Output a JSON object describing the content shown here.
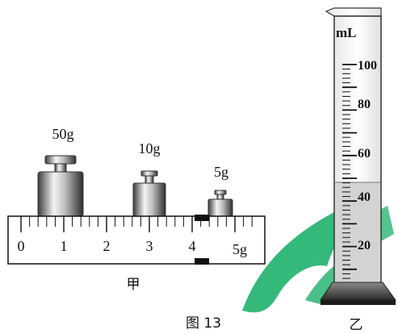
{
  "weights": [
    {
      "label": "50g"
    },
    {
      "label": "10g"
    },
    {
      "label": "5g"
    }
  ],
  "ruler": {
    "numbers": [
      "0",
      "1",
      "2",
      "3",
      "4"
    ],
    "end_label": "5g",
    "caption": "甲"
  },
  "cylinder": {
    "unit": "mL",
    "labels": [
      "100",
      "80",
      "60",
      "40",
      "20"
    ],
    "caption": "乙"
  },
  "figure_caption": "图 13",
  "colors": {
    "watermark_green": "#2bb673",
    "liquid": "#d3d3d3",
    "metal_light": "#f2f2f2",
    "metal_dark": "#5a5a5a"
  }
}
